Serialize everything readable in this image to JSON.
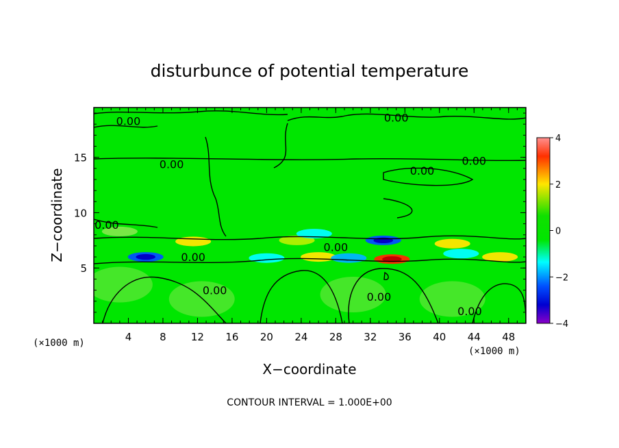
{
  "chart_data": {
    "type": "heatmap",
    "title": "disturbunce of potential temperature",
    "xlabel": "X−coordinate",
    "ylabel": "Z−coordinate",
    "x_unit_note": "(×1000 m)",
    "y_unit_note": "(×1000 m)",
    "footer": "CONTOUR INTERVAL = 1.000E+00",
    "xlim": [
      0,
      50
    ],
    "ylim": [
      0,
      19.5
    ],
    "x_ticks": [
      4,
      8,
      12,
      16,
      20,
      24,
      28,
      32,
      36,
      40,
      44,
      48
    ],
    "x_tick_labels": [
      "4",
      "8",
      "12",
      "16",
      "20",
      "24",
      "28",
      "32",
      "36",
      "40",
      "44",
      "48"
    ],
    "y_ticks": [
      5,
      10,
      15
    ],
    "y_tick_labels": [
      "5",
      "10",
      "15"
    ],
    "colorbar": {
      "range": [
        -4,
        4
      ],
      "ticks": [
        4,
        2,
        0,
        -2,
        -4
      ],
      "tick_labels": [
        "4",
        "2",
        "0",
        "−2",
        "−4"
      ],
      "colors": [
        "#ff9090",
        "#ff2a00",
        "#ffe600",
        "#00e600",
        "#00ffff",
        "#0000ff",
        "#8a00c8"
      ]
    },
    "contour_labels": [
      {
        "x": 4,
        "y": 18.3,
        "text": "0.00"
      },
      {
        "x": 35,
        "y": 18.6,
        "text": "0.00"
      },
      {
        "x": 44,
        "y": 14.7,
        "text": "0.00"
      },
      {
        "x": 38,
        "y": 13.8,
        "text": "0.00"
      },
      {
        "x": 9,
        "y": 14.4,
        "text": "0.00"
      },
      {
        "x": 1.5,
        "y": 8.9,
        "text": "0.00"
      },
      {
        "x": 11.5,
        "y": 6.0,
        "text": "0.00"
      },
      {
        "x": 28,
        "y": 6.9,
        "text": "0.00"
      },
      {
        "x": 14,
        "y": 3.0,
        "text": "0.00"
      },
      {
        "x": 33,
        "y": 2.4,
        "text": "0.00"
      },
      {
        "x": 43.5,
        "y": 1.1,
        "text": "0.00"
      }
    ],
    "features": [
      {
        "x": 11.5,
        "y": 7.4,
        "value": 1.3
      },
      {
        "x": 23.5,
        "y": 7.5,
        "value": 0.7
      },
      {
        "x": 26,
        "y": 6.0,
        "value": 1.2
      },
      {
        "x": 34.5,
        "y": 5.8,
        "value": 3.3
      },
      {
        "x": 41.5,
        "y": 7.2,
        "value": 1.0
      },
      {
        "x": 47,
        "y": 6.0,
        "value": 1.0
      },
      {
        "x": 3,
        "y": 8.3,
        "value": -0.7
      },
      {
        "x": 6,
        "y": 6.0,
        "value": -2.0
      },
      {
        "x": 20,
        "y": 5.9,
        "value": -1.3
      },
      {
        "x": 29.5,
        "y": 5.9,
        "value": -1.6
      },
      {
        "x": 33.5,
        "y": 7.5,
        "value": -2.2
      },
      {
        "x": 25.5,
        "y": 8.1,
        "value": -0.8
      },
      {
        "x": 42.5,
        "y": 6.3,
        "value": -0.9
      },
      {
        "x": 3,
        "y": 3.5,
        "value": -0.5
      },
      {
        "x": 12.5,
        "y": 2.2,
        "value": -0.5
      },
      {
        "x": 30,
        "y": 2.6,
        "value": -0.5
      },
      {
        "x": 41.5,
        "y": 2.2,
        "value": -0.5
      }
    ]
  }
}
